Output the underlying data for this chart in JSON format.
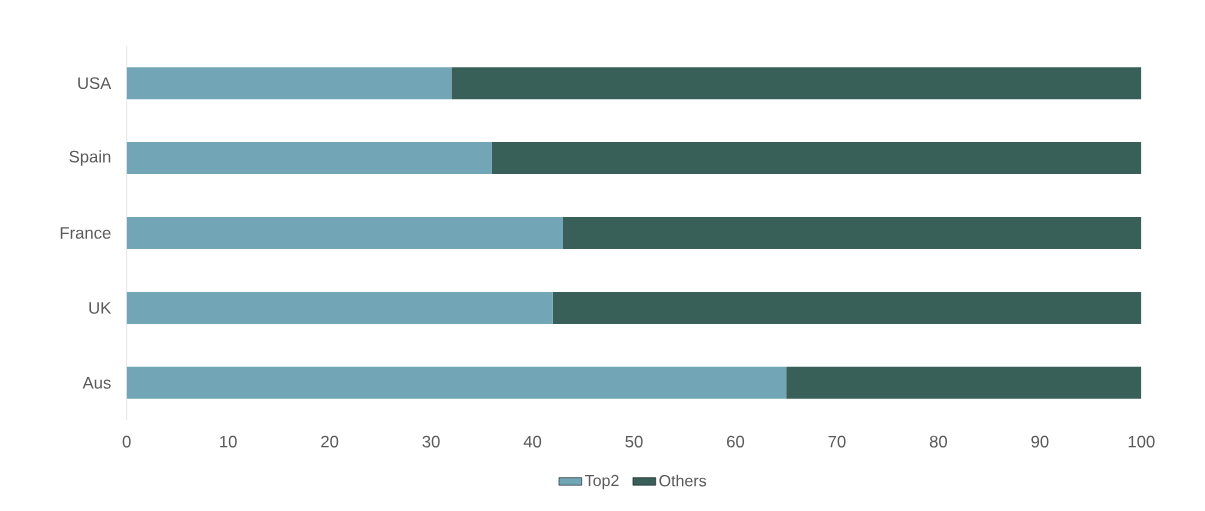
{
  "chart_data": {
    "type": "bar",
    "orientation": "horizontal",
    "stacked": true,
    "categories": [
      "USA",
      "Spain",
      "France",
      "UK",
      "Aus"
    ],
    "series": [
      {
        "name": "Top2",
        "color": "#72a6b7",
        "values": [
          32,
          36,
          43,
          42,
          65
        ]
      },
      {
        "name": "Others",
        "color": "#386059",
        "values": [
          68,
          64,
          57,
          58,
          35
        ]
      }
    ],
    "xlim": [
      0,
      100
    ],
    "xticks": [
      0,
      10,
      20,
      30,
      40,
      50,
      60,
      70,
      80,
      90,
      100
    ],
    "legend": "bottom",
    "grid": false
  }
}
